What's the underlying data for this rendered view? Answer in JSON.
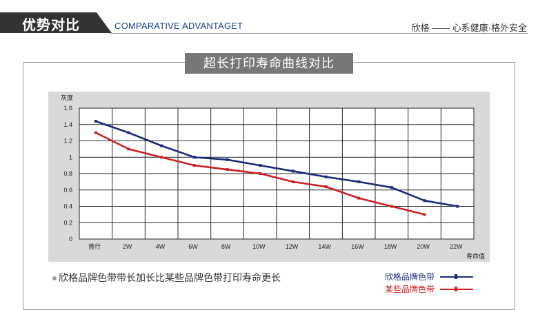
{
  "header": {
    "title": "优势对比",
    "subtitle": "COMPARATIVE ADVANTAGET",
    "right_text": "欣格 —— 心系健康·格外安全"
  },
  "panel": {
    "title": "超长打印寿命曲线对比",
    "caption": "欣格品牌色带带长加长比某些品牌色带打印寿命更长"
  },
  "colors": {
    "header_bg": "#333333",
    "subtitle": "#1c3f8c",
    "series_blue": "#1a2a7a",
    "series_red": "#cc1f1f",
    "plot_bg": "#d9d9d9"
  },
  "chart_data": {
    "type": "line",
    "ylabel": "灰度",
    "xlabel": "寿命值",
    "categories": [
      "首行",
      "2W",
      "4W",
      "6W",
      "8W",
      "10W",
      "12W",
      "14W",
      "16W",
      "18W",
      "20W",
      "22W"
    ],
    "y_ticks": [
      "0",
      "0.2",
      "0.4",
      "0.6",
      "0.8",
      "1",
      "1.2",
      "1.4",
      "1.6"
    ],
    "ylim": [
      0,
      1.6
    ],
    "grid": true,
    "legend_position": "bottom-right",
    "series": [
      {
        "name": "欣格品牌色带",
        "color": "#1a2a7a",
        "values": [
          1.44,
          1.3,
          1.14,
          1.0,
          0.97,
          0.9,
          0.83,
          0.76,
          0.7,
          0.63,
          0.47,
          0.4
        ]
      },
      {
        "name": "某些品牌色带",
        "color": "#cc1f1f",
        "values": [
          1.3,
          1.1,
          1.0,
          0.9,
          0.85,
          0.8,
          0.7,
          0.64,
          0.5,
          0.4,
          0.3,
          null
        ]
      }
    ]
  }
}
